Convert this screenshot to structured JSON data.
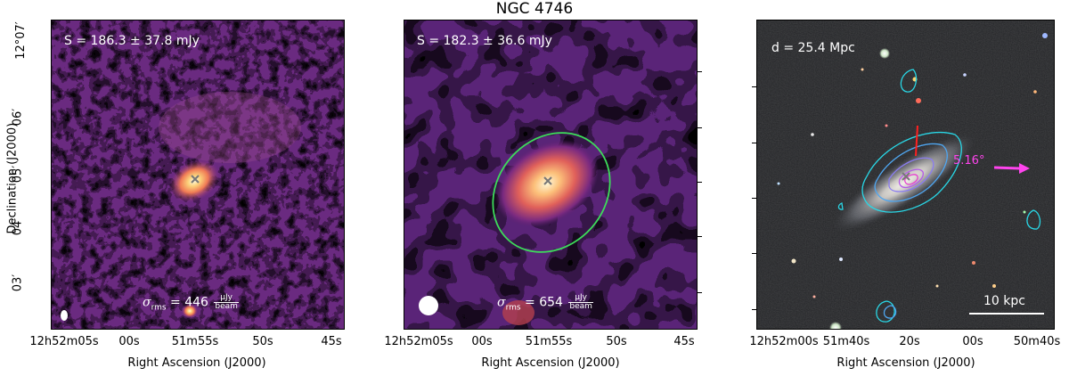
{
  "figure": {
    "title": "NGC 4746"
  },
  "panel_left": {
    "flux_label": "S = 186.3 ± 37.8 mJy",
    "rms_prefix": "σ",
    "rms_sub": "rms",
    "rms_value": " = 446 ",
    "rms_unit_num": "μJy",
    "rms_unit_den": "beam",
    "xticks": [
      "12h52m05s",
      "00s",
      "51m55s",
      "50s",
      "45s"
    ],
    "yticks": [
      "12°07′",
      "06′",
      "05′",
      "04′",
      "03′"
    ],
    "ylabel": "Declination (J2000)",
    "xlabel": "Right Ascension (J2000)"
  },
  "panel_middle": {
    "flux_label": "S = 182.3 ± 36.6 mJy",
    "rms_prefix": "σ",
    "rms_sub": "rms",
    "rms_value": " = 654 ",
    "rms_unit_num": "μJy",
    "rms_unit_den": "beam",
    "xticks": [
      "12h52m05s",
      "00s",
      "51m55s",
      "50s",
      "45s"
    ],
    "xlabel": "Right Ascension (J2000)",
    "ellipse_color": "#3ddc5a"
  },
  "panel_right": {
    "distance_label": "d = 25.4 Mpc",
    "angle_label": "5.16°",
    "scalebar_label": "10 kpc",
    "xticks": [
      "12h52m00s",
      "51m40s",
      "20s",
      "00s",
      "50m40s"
    ],
    "xlabel": "Right Ascension (J2000)",
    "contour_colors": [
      "#29d7e6",
      "#4fa6f0",
      "#8a7cf0",
      "#b55be8",
      "#e640d0"
    ],
    "arrow_color": "#ff44ee",
    "pa_line_color": "#ff2020"
  }
}
